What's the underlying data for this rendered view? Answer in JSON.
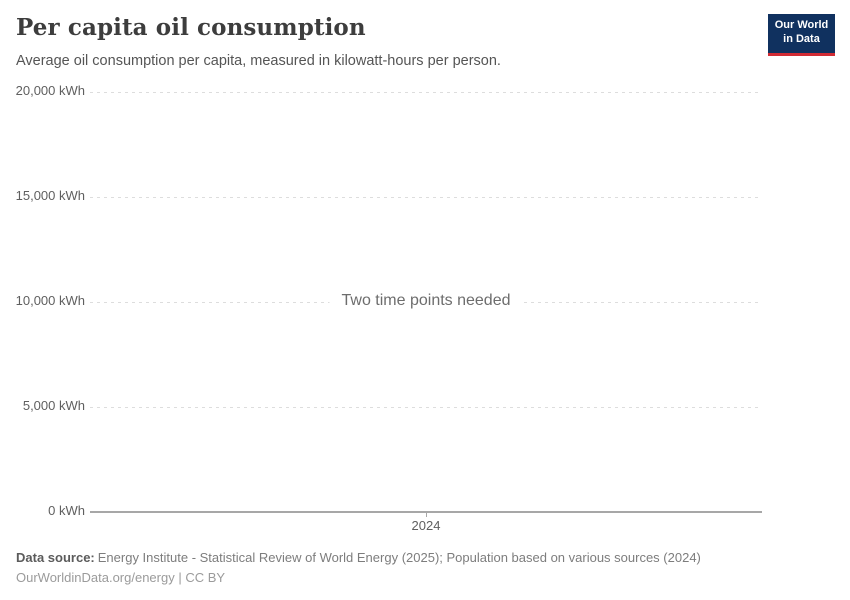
{
  "header": {
    "title": "Per capita oil consumption",
    "subtitle": "Average oil consumption per capita, measured in kilowatt-hours per person.",
    "logo": {
      "line1": "Our World",
      "line2": "in Data"
    }
  },
  "chart_data": {
    "type": "line",
    "title": "Per capita oil consumption",
    "subtitle": "Average oil consumption per capita, measured in kilowatt-hours per person.",
    "unit": "kWh",
    "ylim": [
      0,
      20000
    ],
    "yticks": [
      {
        "value": 20000,
        "label": "20,000 kWh"
      },
      {
        "value": 15000,
        "label": "15,000 kWh"
      },
      {
        "value": 10000,
        "label": "10,000 kWh"
      },
      {
        "value": 5000,
        "label": "5,000 kWh"
      },
      {
        "value": 0,
        "label": "0 kWh"
      }
    ],
    "xticks": [
      {
        "value": 2024,
        "label": "2024"
      }
    ],
    "series": [],
    "empty_message": "Two time points needed",
    "grid": true,
    "legend_position": "none"
  },
  "footer": {
    "datasource_label": "Data source:",
    "datasource_text": "Energy Institute - Statistical Review of World Energy (2025); Population based on various sources (2024)",
    "attribution": "OurWorldinData.org/energy | CC BY"
  },
  "colors": {
    "title": "#3d3d3d",
    "subtitle": "#555555",
    "tick_label": "#5f5f5f",
    "gridline": "#dddddd",
    "axis_line": "#a7a7a7",
    "empty_message": "#6d6d6d",
    "footer_label": "#5b5b5b",
    "footer_text": "#7d7d7d",
    "attribution": "#9b9b9b",
    "logo_bg": "#10315f",
    "logo_accent": "#d12b34"
  }
}
